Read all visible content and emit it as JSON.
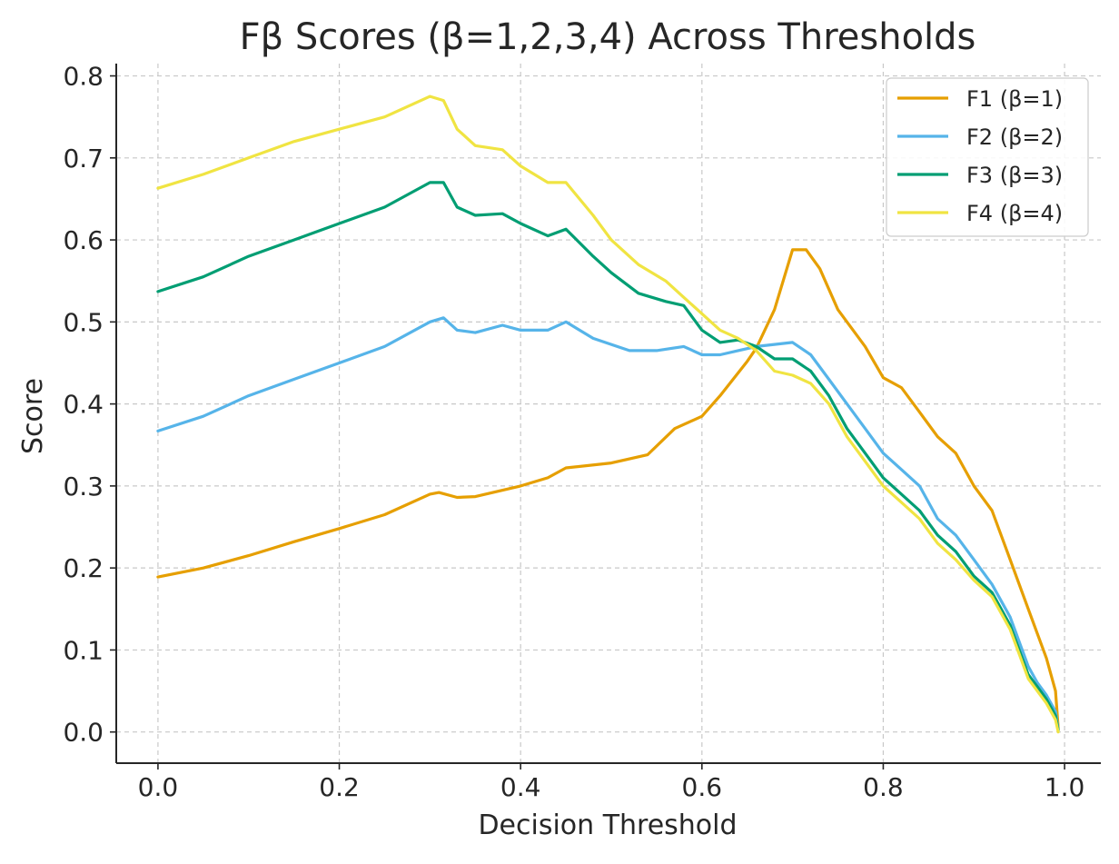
{
  "chart_data": {
    "type": "line",
    "title": "Fβ Scores (β=1,2,3,4) Across Thresholds",
    "xlabel": "Decision Threshold",
    "ylabel": "Score",
    "xlim": [
      -0.046,
      1.04
    ],
    "ylim": [
      -0.038,
      0.815
    ],
    "x_ticks": [
      0.0,
      0.2,
      0.4,
      0.6,
      0.8,
      1.0
    ],
    "x_tick_labels": [
      "0.0",
      "0.2",
      "0.4",
      "0.6",
      "0.8",
      "1.0"
    ],
    "y_ticks": [
      0.0,
      0.1,
      0.2,
      0.3,
      0.4,
      0.5,
      0.6,
      0.7,
      0.8
    ],
    "y_tick_labels": [
      "0.0",
      "0.1",
      "0.2",
      "0.3",
      "0.4",
      "0.5",
      "0.6",
      "0.7",
      "0.8"
    ],
    "grid": true,
    "legend_position": "top-right",
    "series": [
      {
        "name": "F1 (β=1)",
        "color": "#E69F00",
        "points": [
          [
            0.0,
            0.189
          ],
          [
            0.05,
            0.2
          ],
          [
            0.1,
            0.215
          ],
          [
            0.15,
            0.232
          ],
          [
            0.2,
            0.248
          ],
          [
            0.25,
            0.265
          ],
          [
            0.3,
            0.29
          ],
          [
            0.31,
            0.292
          ],
          [
            0.33,
            0.286
          ],
          [
            0.35,
            0.287
          ],
          [
            0.4,
            0.3
          ],
          [
            0.43,
            0.31
          ],
          [
            0.45,
            0.322
          ],
          [
            0.5,
            0.328
          ],
          [
            0.54,
            0.338
          ],
          [
            0.57,
            0.37
          ],
          [
            0.6,
            0.385
          ],
          [
            0.62,
            0.41
          ],
          [
            0.65,
            0.452
          ],
          [
            0.66,
            0.468
          ],
          [
            0.68,
            0.515
          ],
          [
            0.7,
            0.588
          ],
          [
            0.715,
            0.588
          ],
          [
            0.73,
            0.565
          ],
          [
            0.75,
            0.515
          ],
          [
            0.78,
            0.47
          ],
          [
            0.8,
            0.432
          ],
          [
            0.82,
            0.42
          ],
          [
            0.84,
            0.39
          ],
          [
            0.86,
            0.36
          ],
          [
            0.88,
            0.34
          ],
          [
            0.9,
            0.3
          ],
          [
            0.92,
            0.27
          ],
          [
            0.94,
            0.21
          ],
          [
            0.96,
            0.15
          ],
          [
            0.97,
            0.12
          ],
          [
            0.98,
            0.09
          ],
          [
            0.99,
            0.05
          ],
          [
            0.993,
            0.005
          ]
        ]
      },
      {
        "name": "F2 (β=2)",
        "color": "#56B4E9",
        "points": [
          [
            0.0,
            0.367
          ],
          [
            0.05,
            0.385
          ],
          [
            0.1,
            0.41
          ],
          [
            0.15,
            0.43
          ],
          [
            0.2,
            0.45
          ],
          [
            0.25,
            0.47
          ],
          [
            0.3,
            0.5
          ],
          [
            0.315,
            0.505
          ],
          [
            0.33,
            0.49
          ],
          [
            0.35,
            0.487
          ],
          [
            0.38,
            0.496
          ],
          [
            0.4,
            0.49
          ],
          [
            0.43,
            0.49
          ],
          [
            0.45,
            0.5
          ],
          [
            0.48,
            0.48
          ],
          [
            0.52,
            0.465
          ],
          [
            0.55,
            0.465
          ],
          [
            0.58,
            0.47
          ],
          [
            0.6,
            0.46
          ],
          [
            0.62,
            0.46
          ],
          [
            0.64,
            0.465
          ],
          [
            0.66,
            0.47
          ],
          [
            0.7,
            0.475
          ],
          [
            0.72,
            0.46
          ],
          [
            0.74,
            0.43
          ],
          [
            0.76,
            0.4
          ],
          [
            0.78,
            0.37
          ],
          [
            0.8,
            0.34
          ],
          [
            0.82,
            0.32
          ],
          [
            0.84,
            0.3
          ],
          [
            0.86,
            0.26
          ],
          [
            0.88,
            0.24
          ],
          [
            0.9,
            0.21
          ],
          [
            0.92,
            0.18
          ],
          [
            0.94,
            0.14
          ],
          [
            0.96,
            0.08
          ],
          [
            0.97,
            0.06
          ],
          [
            0.98,
            0.045
          ],
          [
            0.99,
            0.025
          ],
          [
            0.993,
            0.003
          ]
        ]
      },
      {
        "name": "F3 (β=3)",
        "color": "#009E73",
        "points": [
          [
            0.0,
            0.537
          ],
          [
            0.05,
            0.555
          ],
          [
            0.1,
            0.58
          ],
          [
            0.15,
            0.6
          ],
          [
            0.2,
            0.62
          ],
          [
            0.25,
            0.64
          ],
          [
            0.3,
            0.67
          ],
          [
            0.315,
            0.67
          ],
          [
            0.33,
            0.64
          ],
          [
            0.35,
            0.63
          ],
          [
            0.38,
            0.632
          ],
          [
            0.4,
            0.62
          ],
          [
            0.43,
            0.605
          ],
          [
            0.45,
            0.613
          ],
          [
            0.48,
            0.58
          ],
          [
            0.5,
            0.56
          ],
          [
            0.53,
            0.535
          ],
          [
            0.56,
            0.525
          ],
          [
            0.58,
            0.52
          ],
          [
            0.6,
            0.49
          ],
          [
            0.62,
            0.475
          ],
          [
            0.64,
            0.478
          ],
          [
            0.66,
            0.47
          ],
          [
            0.68,
            0.455
          ],
          [
            0.7,
            0.455
          ],
          [
            0.72,
            0.44
          ],
          [
            0.74,
            0.41
          ],
          [
            0.76,
            0.37
          ],
          [
            0.78,
            0.34
          ],
          [
            0.8,
            0.31
          ],
          [
            0.82,
            0.29
          ],
          [
            0.84,
            0.27
          ],
          [
            0.86,
            0.24
          ],
          [
            0.88,
            0.22
          ],
          [
            0.9,
            0.19
          ],
          [
            0.92,
            0.17
          ],
          [
            0.94,
            0.13
          ],
          [
            0.96,
            0.07
          ],
          [
            0.97,
            0.055
          ],
          [
            0.98,
            0.04
          ],
          [
            0.99,
            0.02
          ],
          [
            0.993,
            0.002
          ]
        ]
      },
      {
        "name": "F4 (β=4)",
        "color": "#F0E442",
        "points": [
          [
            0.0,
            0.663
          ],
          [
            0.05,
            0.68
          ],
          [
            0.1,
            0.7
          ],
          [
            0.15,
            0.72
          ],
          [
            0.2,
            0.735
          ],
          [
            0.25,
            0.75
          ],
          [
            0.3,
            0.775
          ],
          [
            0.315,
            0.77
          ],
          [
            0.33,
            0.735
          ],
          [
            0.35,
            0.715
          ],
          [
            0.38,
            0.71
          ],
          [
            0.4,
            0.69
          ],
          [
            0.43,
            0.67
          ],
          [
            0.45,
            0.67
          ],
          [
            0.48,
            0.63
          ],
          [
            0.5,
            0.6
          ],
          [
            0.53,
            0.57
          ],
          [
            0.56,
            0.55
          ],
          [
            0.58,
            0.53
          ],
          [
            0.6,
            0.51
          ],
          [
            0.62,
            0.49
          ],
          [
            0.64,
            0.48
          ],
          [
            0.66,
            0.465
          ],
          [
            0.68,
            0.44
          ],
          [
            0.7,
            0.435
          ],
          [
            0.72,
            0.425
          ],
          [
            0.74,
            0.4
          ],
          [
            0.76,
            0.36
          ],
          [
            0.78,
            0.33
          ],
          [
            0.8,
            0.3
          ],
          [
            0.82,
            0.28
          ],
          [
            0.84,
            0.26
          ],
          [
            0.86,
            0.23
          ],
          [
            0.88,
            0.21
          ],
          [
            0.9,
            0.185
          ],
          [
            0.92,
            0.165
          ],
          [
            0.94,
            0.125
          ],
          [
            0.96,
            0.065
          ],
          [
            0.97,
            0.05
          ],
          [
            0.98,
            0.035
          ],
          [
            0.99,
            0.015
          ],
          [
            0.993,
            0.0
          ]
        ]
      }
    ]
  }
}
